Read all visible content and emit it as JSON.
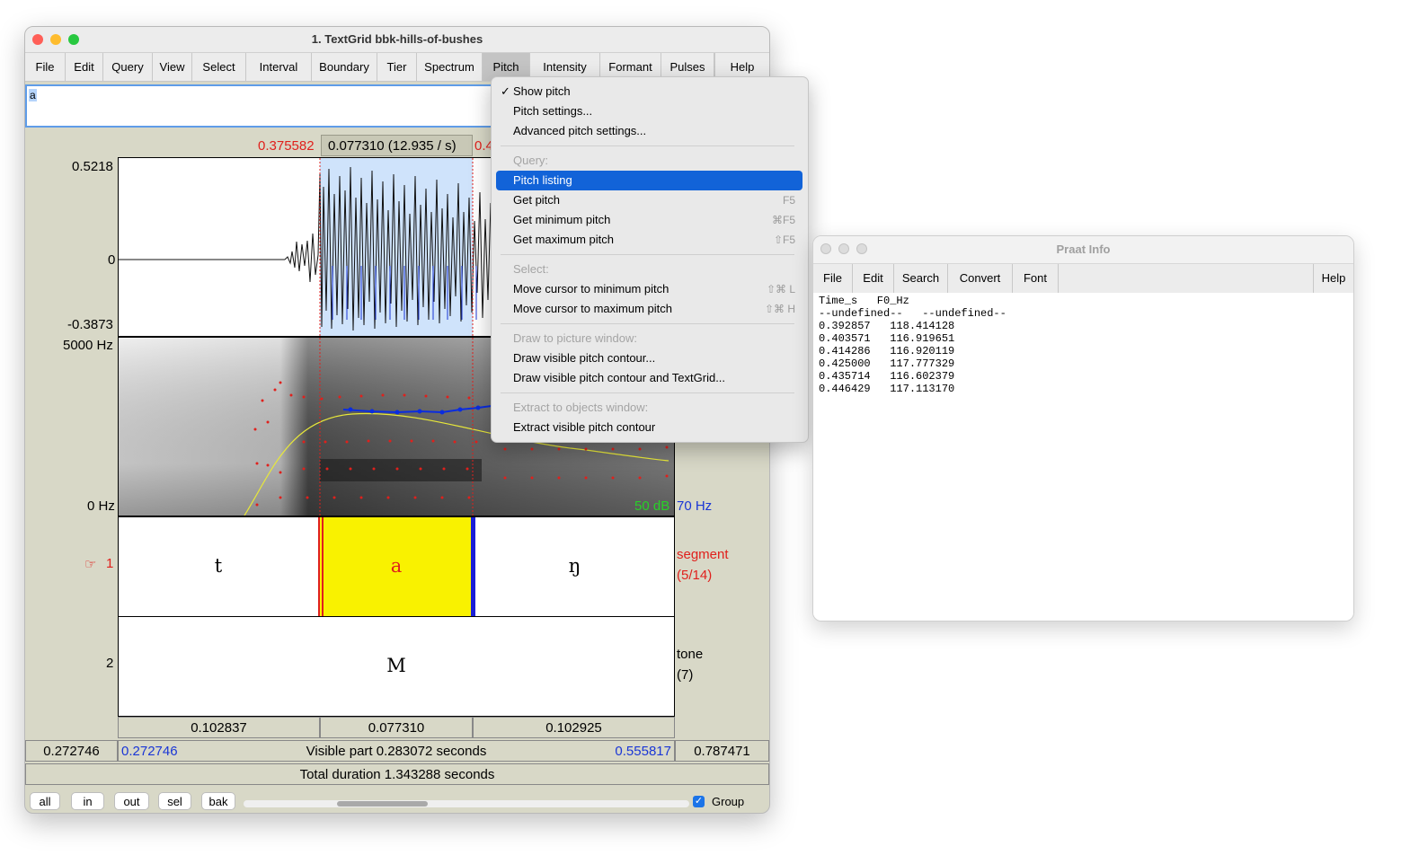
{
  "editor": {
    "title": "1. TextGrid bbk-hills-of-bushes",
    "menu": [
      "File",
      "Edit",
      "Query",
      "View",
      "Select",
      "Interval",
      "Boundary",
      "Tier",
      "Spectrum",
      "Pitch",
      "Intensity",
      "Formant",
      "Pulses",
      "Help"
    ],
    "active_menu": "Pitch",
    "text_field_value": "a",
    "selection_start": "0.375582",
    "selection_duration": "0.077310 (12.935 / s)",
    "selection_end_partial": "0.4",
    "wave_max": "0.5218",
    "wave_zero": "0",
    "wave_min": "-0.3873",
    "spec_top": "5000 Hz",
    "spec_bottom": "0 Hz",
    "intensity_label": "50 dB",
    "pitch_floor_label": "70 Hz",
    "tier1": {
      "number": "1",
      "pointer": "☞",
      "name": "segment",
      "count": "(5/14)",
      "intervals": [
        "t",
        "a",
        "ŋ"
      ]
    },
    "tier2": {
      "number": "2",
      "name": "tone",
      "count": "(7)",
      "intervals": [
        "M"
      ]
    },
    "durations": [
      "0.102837",
      "0.077310",
      "0.102925"
    ],
    "visible_left": "0.272746",
    "visible_start": "0.272746",
    "visible_part": "Visible part 0.283072 seconds",
    "visible_end": "0.555817",
    "visible_right": "0.787471",
    "total_duration": "Total duration 1.343288 seconds",
    "buttons": [
      "all",
      "in",
      "out",
      "sel",
      "bak"
    ],
    "group_label": "Group",
    "group_checked": true
  },
  "pitch_menu": {
    "items": [
      {
        "label": "Show pitch",
        "checked": true
      },
      {
        "label": "Pitch settings..."
      },
      {
        "label": "Advanced pitch settings..."
      },
      {
        "separator": true
      },
      {
        "label": "Query:",
        "disabled": true
      },
      {
        "label": "Pitch listing",
        "highlighted": true
      },
      {
        "label": "Get pitch",
        "shortcut": "F5"
      },
      {
        "label": "Get minimum pitch",
        "shortcut": "⌘F5"
      },
      {
        "label": "Get maximum pitch",
        "shortcut": "⇧F5"
      },
      {
        "separator": true
      },
      {
        "label": "Select:",
        "disabled": true
      },
      {
        "label": "Move cursor to minimum pitch",
        "shortcut": "⇧⌘ L"
      },
      {
        "label": "Move cursor to maximum pitch",
        "shortcut": "⇧⌘ H"
      },
      {
        "separator": true
      },
      {
        "label": "Draw to picture window:",
        "disabled": true
      },
      {
        "label": "Draw visible pitch contour..."
      },
      {
        "label": "Draw visible pitch contour and TextGrid..."
      },
      {
        "separator": true
      },
      {
        "label": "Extract to objects window:",
        "disabled": true
      },
      {
        "label": "Extract visible pitch contour"
      }
    ]
  },
  "info": {
    "title": "Praat Info",
    "menu": [
      "File",
      "Edit",
      "Search",
      "Convert",
      "Font"
    ],
    "help": "Help",
    "lines": [
      "Time_s   F0_Hz",
      "--undefined--   --undefined--",
      "0.392857   118.414128",
      "0.403571   116.919651",
      "0.414286   116.920119",
      "0.425000   117.777329",
      "0.435714   116.602379",
      "0.446429   117.113170"
    ]
  },
  "colors": {
    "selection": "#cfe3fb",
    "interval_selected": "#f9f200",
    "pitch": "#0a2ce0",
    "formant": "#e0201c",
    "intensity": "#e8e83a",
    "menu_highlight": "#1263d8"
  }
}
